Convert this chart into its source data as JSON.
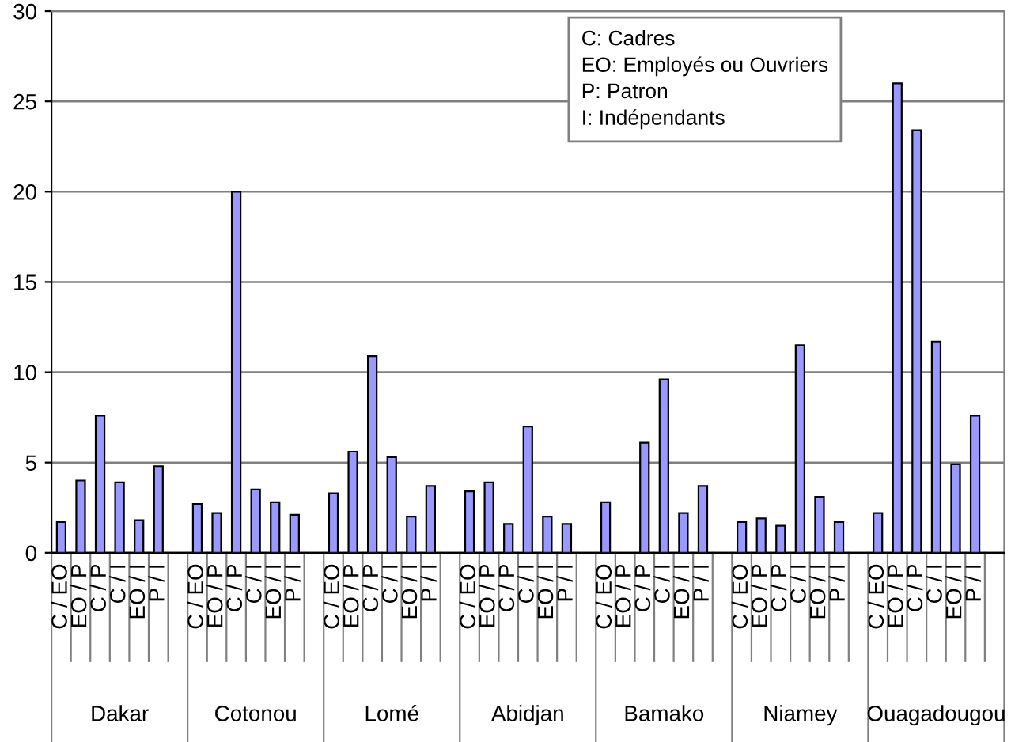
{
  "chart_data": {
    "type": "bar",
    "categories": [
      "C / EO",
      "EO / P",
      "C / P",
      "C / I",
      "EO / I",
      "P / I",
      null,
      "C / EO",
      "EO / P",
      "C / P",
      "C / I",
      "EO / I",
      "P / I",
      null,
      "C / EO",
      "EO / P",
      "C / P",
      "C / I",
      "EO / I",
      "P / I",
      null,
      "C / EO",
      "EO / P",
      "C / P",
      "C / I",
      "EO / I",
      "P / I",
      null,
      "C / EO",
      "EO / P",
      "C / P",
      "C / I",
      "EO / I",
      "P / I",
      null,
      "C / EO",
      "EO / P",
      "C / P",
      "C / I",
      "EO / I",
      "P / I",
      null,
      "C / EO",
      "EO / P",
      "C / P",
      "C / I",
      "EO / I",
      "P / I",
      null
    ],
    "values": [
      1.7,
      4.0,
      7.6,
      3.9,
      1.8,
      4.8,
      null,
      2.7,
      2.2,
      20.0,
      3.5,
      2.8,
      2.1,
      null,
      3.3,
      5.6,
      10.9,
      5.3,
      2.0,
      3.7,
      null,
      3.4,
      3.9,
      1.6,
      7.0,
      2.0,
      1.6,
      null,
      2.8,
      null,
      6.1,
      9.6,
      2.2,
      3.7,
      null,
      1.7,
      1.9,
      1.5,
      11.5,
      3.1,
      1.7,
      null,
      2.2,
      26.0,
      23.4,
      11.7,
      4.9,
      7.6,
      null
    ],
    "color": "#9999ff",
    "ylim": [
      0,
      30
    ],
    "yticks": [
      0,
      5,
      10,
      15,
      20,
      25,
      30
    ],
    "grid": "y",
    "annotations": [
      "C: Cadres",
      "EO: Employés ou Ouvriers",
      "P: Patron",
      "I: Indépendants",
      "Dakar",
      "Cotonou",
      "Lomé",
      "Abidjan",
      "Bamako",
      "Niamey",
      "Ouagadougou"
    ]
  }
}
